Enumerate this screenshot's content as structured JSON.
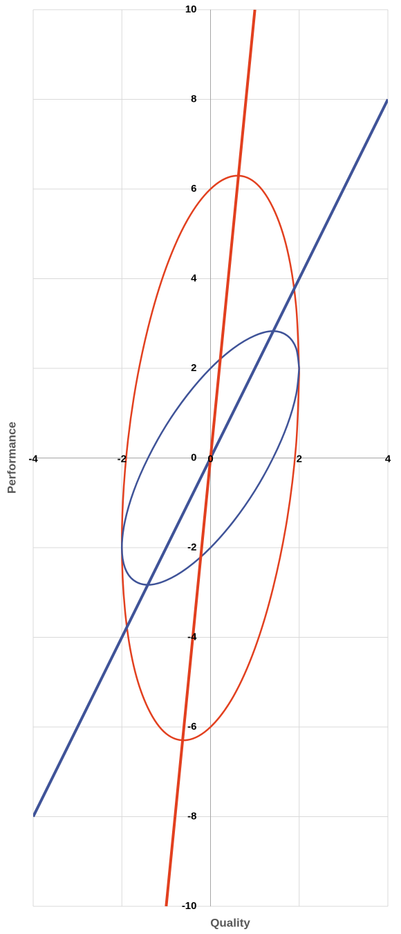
{
  "chart_data": {
    "type": "line",
    "x_label": "Quality",
    "y_label": "Performance",
    "xlim": [
      -4,
      4
    ],
    "xticks": [
      -4,
      -2,
      0,
      2,
      4
    ],
    "ylim": [
      -10,
      10
    ],
    "yticks": [
      -10,
      -8,
      -6,
      -4,
      -2,
      0,
      2,
      4,
      6,
      8,
      10
    ],
    "grid": true,
    "series": [
      {
        "color": "#e2401f",
        "width": 2.5,
        "x": [
          2,
          1.93,
          1.73,
          1.41,
          1,
          0.52,
          0,
          -0.52,
          -1,
          -1.41,
          -1.73,
          -1.93,
          -2,
          -1.93,
          -1.73,
          -1.41,
          -1,
          -0.52,
          0,
          0.52,
          1,
          1.41,
          1.73,
          1.93,
          2
        ],
        "values": [
          1.9,
          3.39,
          4.65,
          5.58,
          6.15,
          6.29,
          6,
          5.31,
          4.25,
          2.9,
          1.35,
          -0.29,
          -1.9,
          -3.39,
          -4.65,
          -5.58,
          -6.15,
          -6.29,
          -6,
          -5.31,
          -4.25,
          -2.9,
          -1.35,
          0.29,
          1.9
        ]
      },
      {
        "color": "#3f5398",
        "width": 2.5,
        "x": [
          2,
          1.93,
          1.73,
          1.41,
          1,
          0.52,
          0,
          -0.52,
          -1,
          -1.41,
          -1.73,
          -1.93,
          -2,
          -1.93,
          -1.73,
          -1.41,
          -1,
          -0.52,
          0,
          0.52,
          1,
          1.41,
          1.73,
          1.93,
          2
        ],
        "values": [
          2,
          2.45,
          2.73,
          2.83,
          2.73,
          2.45,
          2,
          1.41,
          0.73,
          0,
          -0.73,
          -1.41,
          -2,
          -2.45,
          -2.73,
          -2.83,
          -2.73,
          -2.45,
          -2,
          -1.41,
          -0.73,
          0,
          0.73,
          1.41,
          2
        ]
      },
      {
        "color": "#3f5398",
        "width": 4,
        "x": [
          -4,
          4
        ],
        "values": [
          -8,
          8
        ]
      },
      {
        "color": "#e2401f",
        "width": 4,
        "x": [
          -1,
          1
        ],
        "values": [
          -10,
          10
        ]
      }
    ]
  }
}
